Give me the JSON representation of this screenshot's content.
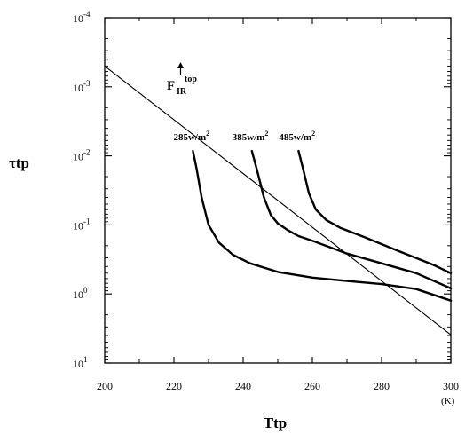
{
  "chart_data": {
    "type": "line",
    "xlabel": "Ttp",
    "x_unit": "(K)",
    "ylabel": "τtp",
    "xlim": [
      200,
      300
    ],
    "ylim": [
      10,
      0.0001
    ],
    "y_scale": "log",
    "y_inverted": true,
    "x_ticks": [
      200,
      220,
      240,
      260,
      280,
      300
    ],
    "y_ticks": [
      {
        "value": 0.0001,
        "mantissa": "10",
        "exponent": "-4"
      },
      {
        "value": 0.001,
        "mantissa": "10",
        "exponent": "-3"
      },
      {
        "value": 0.01,
        "mantissa": "10",
        "exponent": "-2"
      },
      {
        "value": 0.1,
        "mantissa": "10",
        "exponent": "-1"
      },
      {
        "value": 1,
        "mantissa": "10",
        "exponent": "0"
      },
      {
        "value": 10,
        "mantissa": "10",
        "exponent": "1"
      }
    ],
    "legend_title": {
      "base": "F",
      "sub": "IR",
      "sup": "top"
    },
    "series": [
      {
        "name": "285w/m²",
        "label_base": "285w/m",
        "label_sup": "2",
        "color": "#000000",
        "points": [
          [
            225.5,
            0.0085
          ],
          [
            226.5,
            0.015
          ],
          [
            228,
            0.04
          ],
          [
            230,
            0.1
          ],
          [
            233,
            0.18
          ],
          [
            237,
            0.27
          ],
          [
            242,
            0.36
          ],
          [
            250,
            0.48
          ],
          [
            260,
            0.58
          ],
          [
            270,
            0.65
          ],
          [
            280,
            0.72
          ],
          [
            290,
            0.85
          ],
          [
            300,
            1.25
          ]
        ]
      },
      {
        "name": "385w/m²",
        "label_base": "385w/m",
        "label_sup": "2",
        "color": "#000000",
        "points": [
          [
            242.5,
            0.0085
          ],
          [
            244,
            0.016
          ],
          [
            246,
            0.04
          ],
          [
            248,
            0.072
          ],
          [
            250,
            0.095
          ],
          [
            253,
            0.12
          ],
          [
            256,
            0.145
          ],
          [
            260,
            0.17
          ],
          [
            270,
            0.26
          ],
          [
            280,
            0.36
          ],
          [
            290,
            0.5
          ],
          [
            300,
            0.83
          ]
        ]
      },
      {
        "name": "485w/m²",
        "label_base": "485w/m",
        "label_sup": "2",
        "color": "#000000",
        "points": [
          [
            256,
            0.0085
          ],
          [
            257.5,
            0.017
          ],
          [
            259,
            0.035
          ],
          [
            261,
            0.06
          ],
          [
            264,
            0.085
          ],
          [
            268,
            0.11
          ],
          [
            275,
            0.15
          ],
          [
            285,
            0.24
          ],
          [
            295,
            0.38
          ],
          [
            300,
            0.5
          ]
        ]
      },
      {
        "name": "",
        "color": "#000000",
        "thin": true,
        "points": [
          [
            200,
            0.0005
          ],
          [
            300,
            3.9
          ]
        ]
      }
    ]
  }
}
